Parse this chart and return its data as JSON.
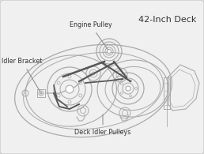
{
  "title": "42-Inch Deck",
  "label_engine_pulley": "Engine Pulley",
  "label_idler_bracket": "Idler Bracket",
  "label_deck_idler": "Deck Idler Pulleys",
  "bg_color": "#f0f0f0",
  "border_color": "#bbbbbb",
  "line_color": "#aaaaaa",
  "dark_line": "#555555",
  "text_color": "#333333",
  "title_color": "#333333",
  "fig_w": 2.58,
  "fig_h": 1.95,
  "dpi": 100
}
